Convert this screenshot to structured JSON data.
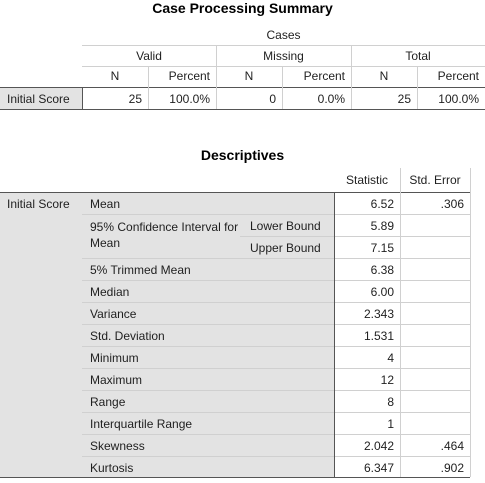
{
  "case_processing": {
    "title": "Case Processing Summary",
    "group_header": "Cases",
    "subgroups": [
      "Valid",
      "Missing",
      "Total"
    ],
    "col_headers": [
      "N",
      "Percent",
      "N",
      "Percent",
      "N",
      "Percent"
    ],
    "row_label": "Initial Score",
    "values": [
      "25",
      "100.0%",
      "0",
      "0.0%",
      "25",
      "100.0%"
    ]
  },
  "descriptives": {
    "title": "Descriptives",
    "col_headers": {
      "statistic": "Statistic",
      "std_error": "Std. Error"
    },
    "variable": "Initial Score",
    "rows": [
      {
        "label": "Mean",
        "statistic": "6.52",
        "std_error": ".306"
      },
      {
        "label": "95% Confidence Interval for Mean",
        "sub": "Lower Bound",
        "statistic": "5.89",
        "std_error": ""
      },
      {
        "label": "",
        "sub": "Upper Bound",
        "statistic": "7.15",
        "std_error": ""
      },
      {
        "label": "5% Trimmed Mean",
        "statistic": "6.38",
        "std_error": ""
      },
      {
        "label": "Median",
        "statistic": "6.00",
        "std_error": ""
      },
      {
        "label": "Variance",
        "statistic": "2.343",
        "std_error": ""
      },
      {
        "label": "Std. Deviation",
        "statistic": "1.531",
        "std_error": ""
      },
      {
        "label": "Minimum",
        "statistic": "4",
        "std_error": ""
      },
      {
        "label": "Maximum",
        "statistic": "12",
        "std_error": ""
      },
      {
        "label": "Range",
        "statistic": "8",
        "std_error": ""
      },
      {
        "label": "Interquartile Range",
        "statistic": "1",
        "std_error": ""
      },
      {
        "label": "Skewness",
        "statistic": "2.042",
        "std_error": ".464"
      },
      {
        "label": "Kurtosis",
        "statistic": "6.347",
        "std_error": ".902"
      }
    ]
  }
}
